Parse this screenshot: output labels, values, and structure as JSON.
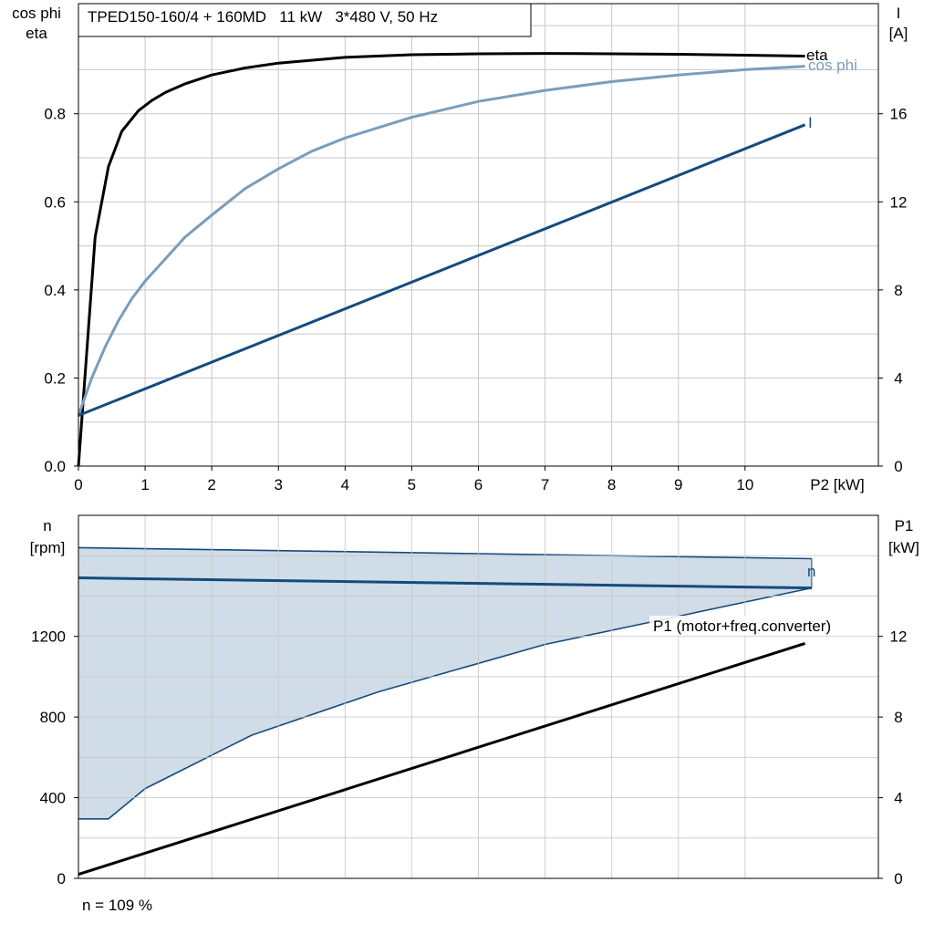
{
  "colors": {
    "eta": "#000000",
    "cos_phi": "#7a9dbb",
    "current": "#144b7d",
    "n": "#144b7d",
    "band_fill": "#d0dce8",
    "p1": "#000000",
    "grid": "#c8c8c8"
  },
  "footer": {
    "speed_note": "n = 109 %"
  },
  "chart_data": [
    {
      "type": "line",
      "title": "TPED150-160/4 + 160MD   11 kW   3*480 V, 50 Hz",
      "xlabel": "P2 [kW]",
      "ylabel_left": [
        "cos phi",
        "eta"
      ],
      "ylabel_right": [
        "I",
        "[A]"
      ],
      "xlim": [
        0,
        12
      ],
      "ylim_left": [
        0,
        1.05
      ],
      "ylim_right": [
        0,
        21
      ],
      "x_ticks": [
        0,
        1,
        2,
        3,
        4,
        5,
        6,
        7,
        8,
        9,
        10
      ],
      "y_ticks_left": [
        0.0,
        0.2,
        0.4,
        0.6,
        0.8
      ],
      "y_tick_labels_left": [
        "0.0",
        "0.2",
        "0.4",
        "0.6",
        "0.8"
      ],
      "y_ticks_right": [
        0,
        4,
        8,
        12,
        16
      ],
      "grid": true,
      "series": [
        {
          "name": "eta",
          "key": "eta",
          "axis": "left",
          "x": [
            0,
            0.25,
            0.45,
            0.65,
            0.9,
            1.1,
            1.3,
            1.6,
            2.0,
            2.5,
            3.0,
            4.0,
            5.0,
            6.0,
            7.0,
            8.0,
            9.0,
            10.0,
            10.9
          ],
          "y": [
            0.0,
            0.52,
            0.68,
            0.76,
            0.807,
            0.83,
            0.848,
            0.868,
            0.888,
            0.904,
            0.915,
            0.928,
            0.934,
            0.936,
            0.937,
            0.936,
            0.935,
            0.933,
            0.931
          ]
        },
        {
          "name": "cos phi",
          "key": "cos_phi",
          "axis": "left",
          "x": [
            0,
            0.2,
            0.4,
            0.6,
            0.8,
            1.0,
            1.3,
            1.6,
            2.0,
            2.5,
            3.0,
            3.5,
            4.0,
            5.0,
            6.0,
            7.0,
            8.0,
            9.0,
            10.0,
            10.9
          ],
          "y": [
            0.115,
            0.2,
            0.27,
            0.33,
            0.38,
            0.42,
            0.47,
            0.52,
            0.57,
            0.63,
            0.675,
            0.715,
            0.745,
            0.792,
            0.828,
            0.853,
            0.873,
            0.888,
            0.9,
            0.908
          ]
        },
        {
          "name": "I",
          "key": "current",
          "axis": "right",
          "x": [
            0,
            10.9
          ],
          "y": [
            2.3,
            15.5
          ]
        }
      ]
    },
    {
      "type": "area",
      "ylabel_left": [
        "n",
        "[rpm]"
      ],
      "ylabel_right": [
        "P1",
        "[kW]"
      ],
      "xlim": [
        0,
        12
      ],
      "ylim_left": [
        0,
        1800
      ],
      "ylim_right": [
        0,
        18
      ],
      "x_ticks": [
        0,
        1,
        2,
        3,
        4,
        5,
        6,
        7,
        8,
        9,
        10
      ],
      "y_ticks_left": [
        0,
        400,
        800,
        1200
      ],
      "y_ticks_right": [
        0,
        4,
        8,
        12
      ],
      "grid": true,
      "band": {
        "upper": {
          "x": [
            0,
            11.0
          ],
          "y": [
            1640,
            1585
          ]
        },
        "lower": {
          "x": [
            0,
            0.45,
            1.0,
            2.6,
            4.5,
            7.0,
            9.0,
            11.0
          ],
          "y": [
            295,
            295,
            445,
            710,
            925,
            1160,
            1300,
            1440
          ]
        }
      },
      "series": [
        {
          "name": "n",
          "key": "n",
          "axis": "left",
          "x": [
            0,
            11.0
          ],
          "y": [
            1490,
            1440
          ]
        },
        {
          "name": "P1 (motor+freq.converter)",
          "key": "p1",
          "axis": "right",
          "x": [
            0,
            10.9
          ],
          "y": [
            0.2,
            11.65
          ]
        }
      ]
    }
  ]
}
